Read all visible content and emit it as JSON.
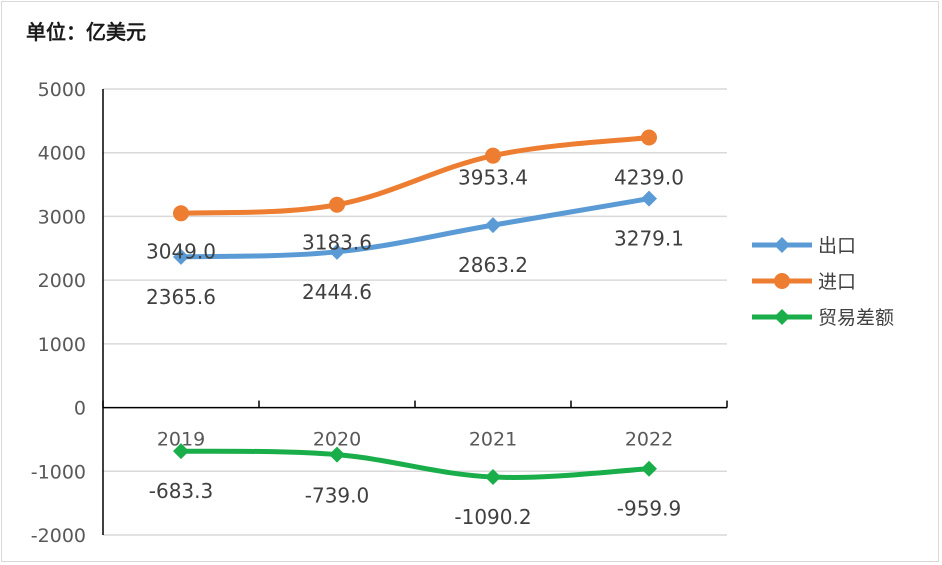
{
  "unit_label": "单位：亿美元",
  "chart_data": {
    "type": "line",
    "title": "",
    "ylabel": "单位：亿美元",
    "xlabel": "",
    "categories": [
      "2019",
      "2020",
      "2021",
      "2022"
    ],
    "ylim": [
      -2000,
      5000
    ],
    "yticks": [
      5000,
      4000,
      3000,
      2000,
      1000,
      0,
      -1000,
      -2000
    ],
    "grid": true,
    "legend_position": "right",
    "series": [
      {
        "name": "出口",
        "values": [
          2365.6,
          2444.6,
          2863.2,
          3279.1
        ],
        "labels": [
          "2365.6",
          "2444.6",
          "2863.2",
          "3279.1"
        ],
        "color": "#5b9bd5",
        "marker": "diamond"
      },
      {
        "name": "进口",
        "values": [
          3049.0,
          3183.6,
          3953.4,
          4239.0
        ],
        "labels": [
          "3049.0",
          "3183.6",
          "3953.4",
          "4239.0"
        ],
        "color": "#ed7d31",
        "marker": "circle"
      },
      {
        "name": "贸易差额",
        "values": [
          -683.3,
          -739.0,
          -1090.2,
          -959.9
        ],
        "labels": [
          "-683.3",
          "-739.0",
          "-1090.2",
          "-959.9"
        ],
        "color": "#1aae4b",
        "marker": "diamond"
      }
    ]
  }
}
